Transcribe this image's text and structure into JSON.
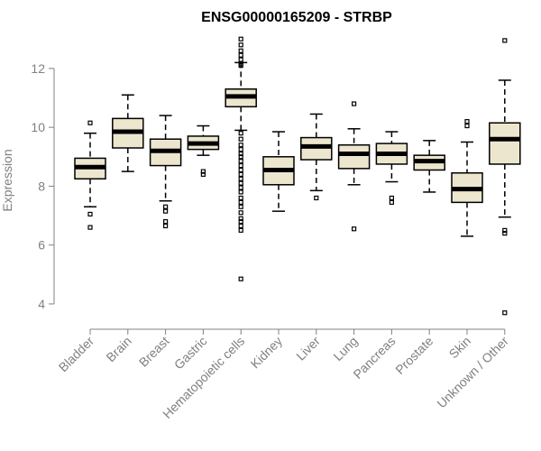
{
  "chart_data": {
    "type": "box",
    "title": "ENSG00000165209 - STRBP",
    "xlabel": "",
    "ylabel": "Expression",
    "ylim": [
      3.6,
      13.1
    ],
    "yticks": [
      4,
      6,
      8,
      10,
      12
    ],
    "box_color": "#ede6cf",
    "categories": [
      "Bladder",
      "Brain",
      "Breast",
      "Gastric",
      "Hematopoietic cells",
      "Kidney",
      "Liver",
      "Lung",
      "Pancreas",
      "Prostate",
      "Skin",
      "Unknown / Other"
    ],
    "boxes": [
      {
        "q1": 8.25,
        "median": 8.65,
        "q3": 8.95,
        "whisker_low": 7.3,
        "whisker_high": 9.8,
        "outliers": [
          10.15,
          7.05,
          6.6
        ]
      },
      {
        "q1": 9.3,
        "median": 9.85,
        "q3": 10.3,
        "whisker_low": 8.5,
        "whisker_high": 11.1,
        "outliers": []
      },
      {
        "q1": 8.7,
        "median": 9.2,
        "q3": 9.6,
        "whisker_low": 7.5,
        "whisker_high": 10.4,
        "outliers": [
          7.3,
          7.15,
          6.8,
          6.65
        ]
      },
      {
        "q1": 9.25,
        "median": 9.45,
        "q3": 9.7,
        "whisker_low": 9.05,
        "whisker_high": 10.05,
        "outliers": [
          8.5,
          8.4
        ]
      },
      {
        "q1": 10.7,
        "median": 11.05,
        "q3": 11.3,
        "whisker_low": 9.9,
        "whisker_high": 12.2,
        "outliers": [
          13.0,
          12.8,
          12.6,
          12.45,
          12.3,
          12.15,
          12.1,
          9.8,
          9.6,
          9.4,
          9.25,
          9.1,
          9.0,
          8.85,
          8.7,
          8.55,
          8.4,
          8.25,
          8.1,
          7.95,
          7.8,
          7.6,
          7.45,
          7.3,
          7.1,
          6.9,
          6.8,
          6.65,
          6.5,
          4.85
        ]
      },
      {
        "q1": 8.05,
        "median": 8.55,
        "q3": 9.0,
        "whisker_low": 7.15,
        "whisker_high": 9.85,
        "outliers": []
      },
      {
        "q1": 8.9,
        "median": 9.35,
        "q3": 9.65,
        "whisker_low": 7.85,
        "whisker_high": 10.45,
        "outliers": [
          7.6
        ]
      },
      {
        "q1": 8.6,
        "median": 9.1,
        "q3": 9.4,
        "whisker_low": 8.05,
        "whisker_high": 9.95,
        "outliers": [
          10.8,
          6.55
        ]
      },
      {
        "q1": 8.75,
        "median": 9.1,
        "q3": 9.45,
        "whisker_low": 8.15,
        "whisker_high": 9.85,
        "outliers": [
          7.6,
          7.45
        ]
      },
      {
        "q1": 8.55,
        "median": 8.85,
        "q3": 9.05,
        "whisker_low": 7.8,
        "whisker_high": 9.55,
        "outliers": []
      },
      {
        "q1": 7.45,
        "median": 7.9,
        "q3": 8.45,
        "whisker_low": 6.3,
        "whisker_high": 9.5,
        "outliers": [
          10.2,
          10.05
        ]
      },
      {
        "q1": 8.75,
        "median": 9.6,
        "q3": 10.15,
        "whisker_low": 6.95,
        "whisker_high": 11.6,
        "outliers": [
          12.95,
          6.5,
          6.4,
          3.7
        ]
      }
    ]
  }
}
